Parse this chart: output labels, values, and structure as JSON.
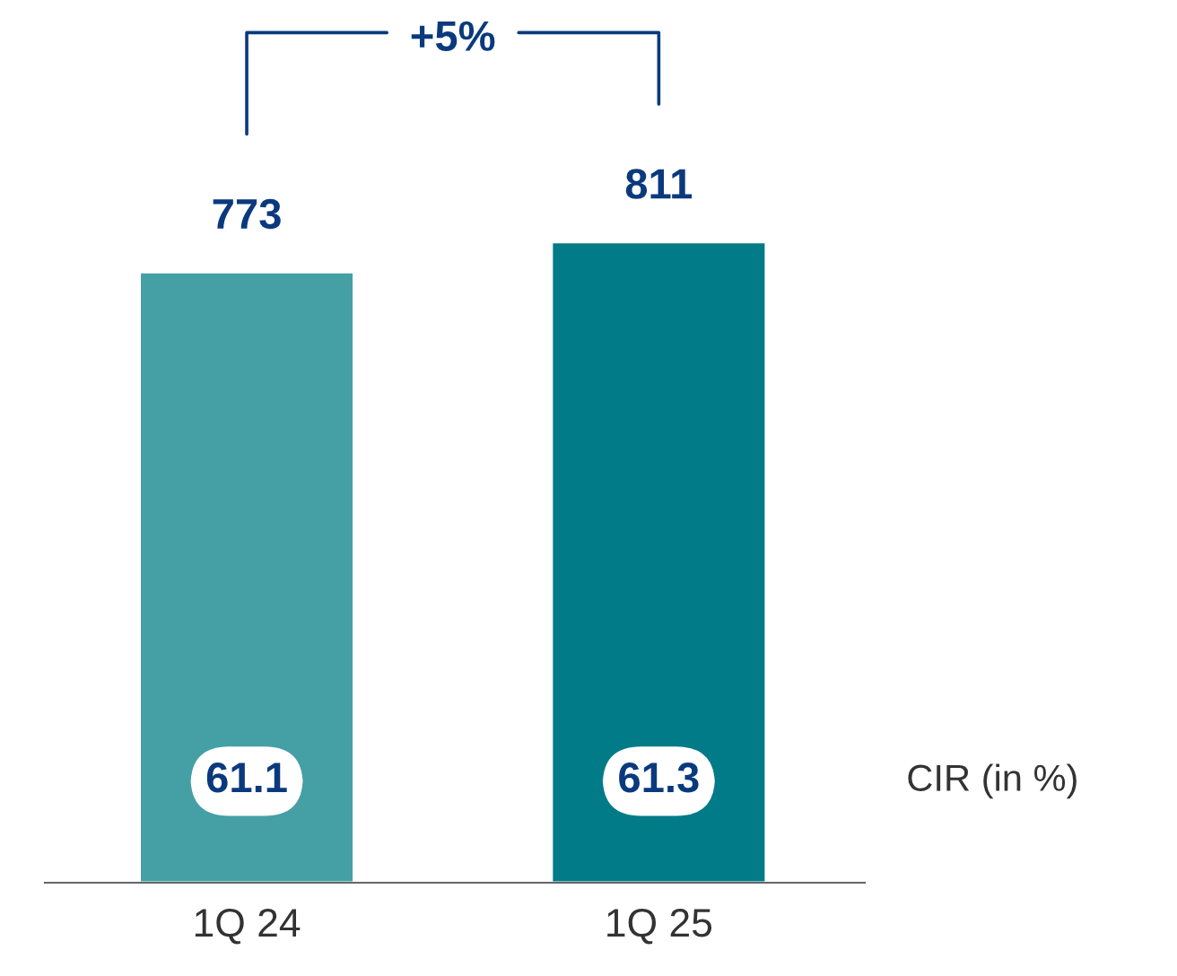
{
  "chart_data": {
    "type": "bar",
    "categories": [
      "1Q 24",
      "1Q 25"
    ],
    "values": [
      773,
      811
    ],
    "colors": [
      "#45a0a6",
      "#007b87"
    ],
    "data_labels": true,
    "tick_labels": "x",
    "grid": false,
    "legend": false,
    "annotations": [
      "+5%",
      "CIR (in %)",
      "61.1",
      "61.3"
    ]
  }
}
